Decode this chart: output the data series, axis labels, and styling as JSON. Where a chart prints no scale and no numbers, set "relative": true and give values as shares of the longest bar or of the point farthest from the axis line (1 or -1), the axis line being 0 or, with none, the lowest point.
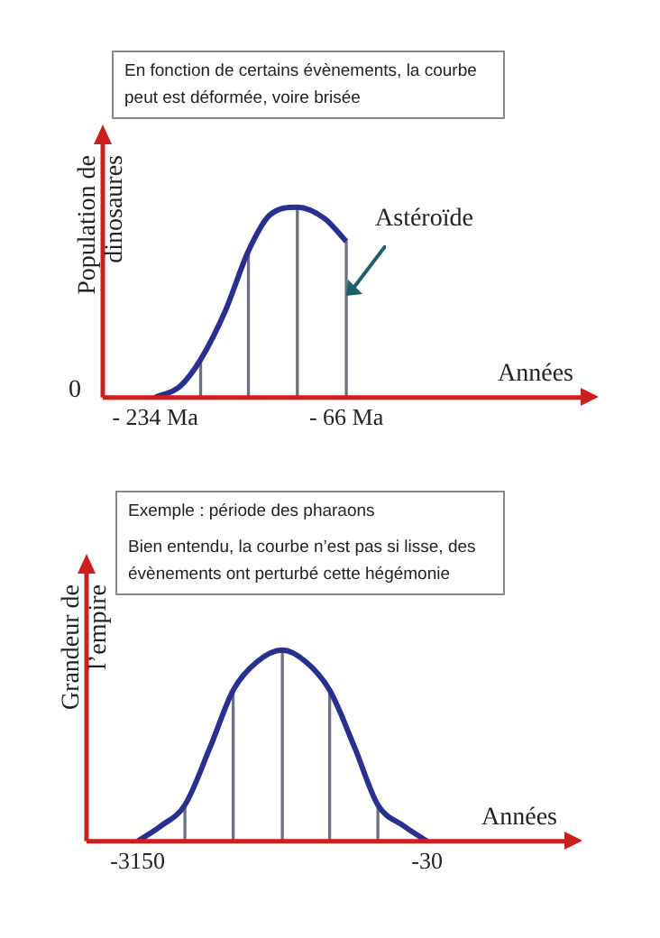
{
  "chart_data": [
    {
      "type": "line",
      "title": "En fonction de certains évènements, la courbe peut est déformée, voire brisée",
      "xlabel": "Années",
      "ylabel": "Population de dinosaures",
      "relative": true,
      "marker": "none",
      "xlim": [
        -280,
        140
      ],
      "xticks": [
        {
          "value": -234,
          "label": "- 234 Ma"
        },
        {
          "value": -66,
          "label": "- 66 Ma"
        }
      ],
      "annotations": [
        "0",
        {
          "text": "Astéroïde",
          "x": -66,
          "y": 0.53
        }
      ],
      "series": [
        {
          "color": "#2b2f8f",
          "x": [
            -234,
            -212,
            -194,
            -172,
            -152,
            -133,
            -109,
            -85,
            -66
          ],
          "values": [
            0,
            0.06,
            0.2,
            0.46,
            0.77,
            0.96,
            1,
            0.94,
            0.82
          ]
        },
        {
          "type": "bar",
          "color": "#6e7080",
          "x": [
            -194,
            -152,
            -109,
            -66
          ],
          "values": [
            0.2,
            0.77,
            1,
            0.82
          ]
        }
      ]
    },
    {
      "type": "line",
      "title": "Exemple : période des pharaons",
      "subtitle": "Bien entendu, la courbe n’est pas si lisse, des évènements ont perturbé cette hégémonie",
      "xlabel": "Années",
      "ylabel": "Grandeur de l’empire",
      "relative": true,
      "marker": "none",
      "xlim": [
        -3700,
        1450
      ],
      "xticks": [
        {
          "value": -3150,
          "label": "-3150"
        },
        {
          "value": -30,
          "label": "-30"
        }
      ],
      "series": [
        {
          "color": "#2b2f8f",
          "x": [
            -3150,
            -2900,
            -2640,
            -2370,
            -2120,
            -1860,
            -1590,
            -1340,
            -1080,
            -810,
            -560,
            -280,
            -30
          ],
          "values": [
            0,
            0.08,
            0.19,
            0.49,
            0.79,
            0.94,
            1,
            0.94,
            0.79,
            0.49,
            0.19,
            0.08,
            0
          ]
        },
        {
          "type": "bar",
          "color": "#6e7080",
          "x": [
            -2640,
            -2120,
            -1590,
            -1080,
            -560
          ],
          "values": [
            0.19,
            0.79,
            1,
            0.79,
            0.19
          ]
        }
      ]
    }
  ]
}
